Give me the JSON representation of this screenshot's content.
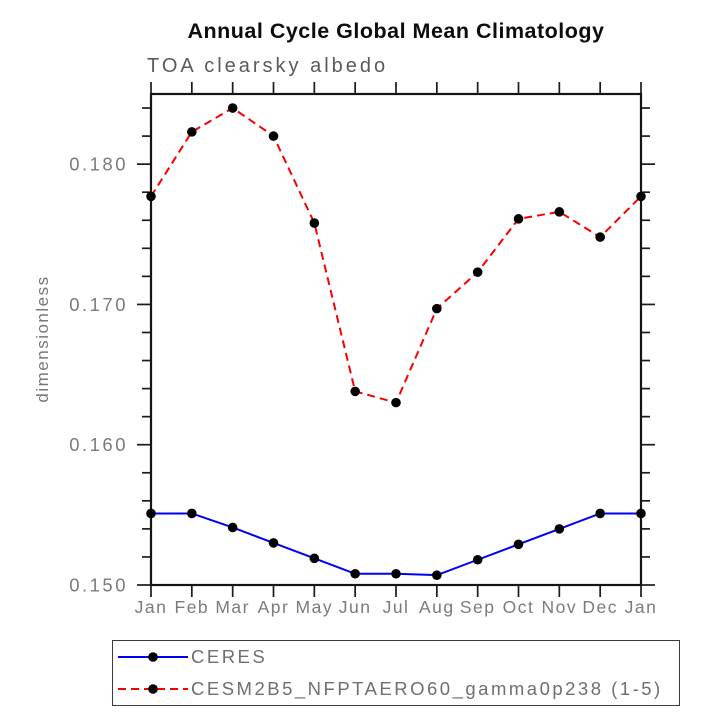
{
  "chart_data": {
    "type": "line",
    "title": "Annual Cycle Global Mean Climatology",
    "subtitle": "TOA clearsky albedo",
    "ylabel": "dimensionless",
    "xlabel": "",
    "grid": false,
    "legend_position": "bottom-left",
    "x": [
      "Jan",
      "Feb",
      "Mar",
      "Apr",
      "May",
      "Jun",
      "Jul",
      "Aug",
      "Sep",
      "Oct",
      "Nov",
      "Dec",
      "Jan"
    ],
    "ylim": [
      0.15,
      0.185
    ],
    "yticks_major": [
      0.15,
      0.16,
      0.17,
      0.18
    ],
    "ytick_labels": [
      "0.150",
      "0.160",
      "0.170",
      "0.180"
    ],
    "yminor_step": 0.002,
    "marker": {
      "shape": "circle",
      "color": "#000000"
    },
    "series": [
      {
        "name": "CERES",
        "color": "#0000f2",
        "style": "solid",
        "values": [
          0.1551,
          0.1551,
          0.1541,
          0.153,
          0.1519,
          0.1508,
          0.1508,
          0.1507,
          0.1518,
          0.1529,
          0.154,
          0.1551,
          0.1551
        ]
      },
      {
        "name": "CESM2B5_NFPTAERO60_gamma0p238 (1-5)",
        "color": "#f80000",
        "style": "dashed",
        "values": [
          0.1777,
          0.1823,
          0.184,
          0.182,
          0.1758,
          0.1638,
          0.163,
          0.1697,
          0.1723,
          0.1761,
          0.1766,
          0.1748,
          0.1777
        ]
      }
    ]
  }
}
